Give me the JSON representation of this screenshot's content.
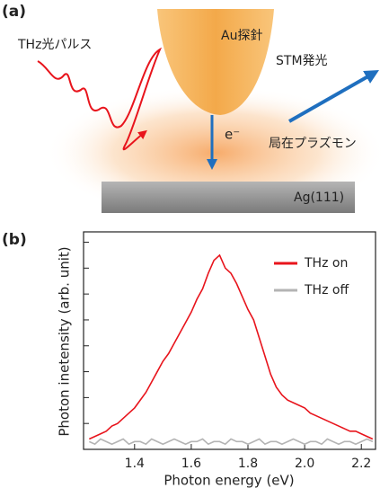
{
  "panel_a": {
    "label": "(a)",
    "thz_pulse": "THz光パルス",
    "tip": "Au探針",
    "stm_emission": "STM発光",
    "electron": "e⁻",
    "plasmon": "局在プラズモン",
    "substrate": "Ag(111)"
  },
  "chart_data": {
    "type": "line",
    "panel_label": "(b)",
    "x_label": "Photon energy (eV)",
    "y_label": "Photon inetensity (arb. unit)",
    "x": [
      1.24,
      1.26,
      1.28,
      1.3,
      1.32,
      1.34,
      1.36,
      1.38,
      1.4,
      1.42,
      1.44,
      1.46,
      1.48,
      1.5,
      1.52,
      1.54,
      1.56,
      1.58,
      1.6,
      1.62,
      1.64,
      1.66,
      1.68,
      1.7,
      1.72,
      1.74,
      1.76,
      1.78,
      1.8,
      1.82,
      1.84,
      1.86,
      1.88,
      1.9,
      1.92,
      1.94,
      1.96,
      1.98,
      2.0,
      2.02,
      2.04,
      2.06,
      2.08,
      2.1,
      2.12,
      2.14,
      2.16,
      2.18,
      2.2,
      2.22,
      2.24
    ],
    "series": [
      {
        "name": "THz on",
        "color": "#e8141c",
        "values": [
          0.4,
          0.5,
          0.6,
          0.7,
          0.9,
          1.0,
          1.2,
          1.4,
          1.6,
          1.9,
          2.2,
          2.6,
          3.0,
          3.4,
          3.7,
          4.1,
          4.5,
          4.9,
          5.3,
          5.8,
          6.2,
          6.8,
          7.3,
          7.5,
          7.0,
          6.8,
          6.4,
          5.9,
          5.4,
          5.0,
          4.3,
          3.6,
          2.9,
          2.4,
          2.1,
          1.9,
          1.8,
          1.7,
          1.6,
          1.4,
          1.3,
          1.2,
          1.1,
          1.0,
          0.9,
          0.8,
          0.7,
          0.7,
          0.6,
          0.5,
          0.4
        ]
      },
      {
        "name": "THz off",
        "color": "#b4b4b4",
        "values": [
          0.3,
          0.2,
          0.4,
          0.3,
          0.2,
          0.3,
          0.4,
          0.2,
          0.3,
          0.3,
          0.2,
          0.4,
          0.3,
          0.2,
          0.3,
          0.4,
          0.3,
          0.2,
          0.3,
          0.3,
          0.4,
          0.2,
          0.3,
          0.3,
          0.2,
          0.4,
          0.3,
          0.3,
          0.2,
          0.3,
          0.4,
          0.2,
          0.3,
          0.3,
          0.2,
          0.3,
          0.4,
          0.3,
          0.2,
          0.3,
          0.3,
          0.2,
          0.4,
          0.3,
          0.2,
          0.3,
          0.3,
          0.2,
          0.3,
          0.4,
          0.3
        ]
      }
    ],
    "xlim": [
      1.22,
      2.25
    ],
    "xticks": [
      {
        "value": 1.4,
        "label": "1.4"
      },
      {
        "value": 1.6,
        "label": "1.6"
      },
      {
        "value": 1.8,
        "label": "1.8"
      },
      {
        "value": 2.0,
        "label": "2.0"
      },
      {
        "value": 2.2,
        "label": "2.2"
      }
    ],
    "ylim": [
      0,
      8.4
    ],
    "yticks": [
      1,
      2,
      3,
      4,
      5,
      6,
      7,
      8
    ],
    "legend": "upper right"
  }
}
